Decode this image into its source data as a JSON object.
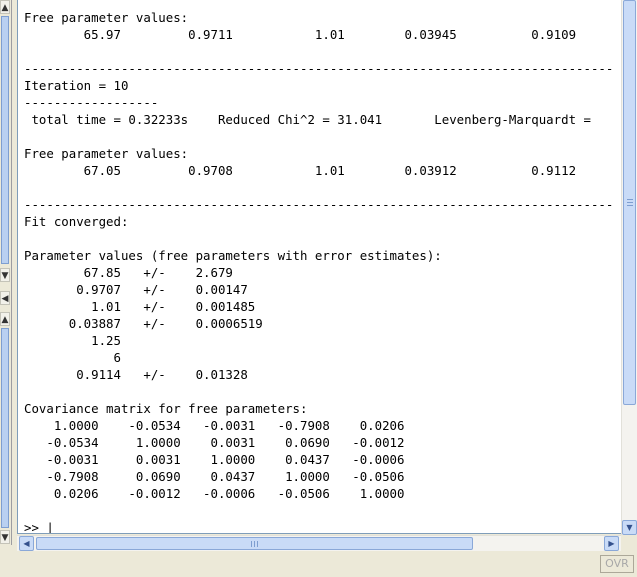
{
  "console": {
    "lines": [
      "Free parameter values:",
      "        65.97         0.9711           1.01        0.03945          0.9109",
      "",
      "-------------------------------------------------------------------------------",
      "Iteration = 10",
      "------------------",
      " total time = 0.32233s    Reduced Chi^2 = 31.041       Levenberg-Marquardt =",
      "",
      "Free parameter values:",
      "        67.05         0.9708           1.01        0.03912          0.9112",
      "",
      "-------------------------------------------------------------------------------",
      "Fit converged:",
      "",
      "Parameter values (free parameters with error estimates):",
      "        67.85   +/-    2.679",
      "       0.9707   +/-    0.00147",
      "         1.01   +/-    0.001485",
      "      0.03887   +/-    0.0006519",
      "         1.25",
      "            6",
      "       0.9114   +/-    0.01328",
      "",
      "Covariance matrix for free parameters:",
      "    1.0000    -0.0534   -0.0031   -0.7908    0.0206",
      "   -0.0534     1.0000    0.0031    0.0690   -0.0012",
      "   -0.0031     0.0031    1.0000    0.0437   -0.0006",
      "   -0.7908     0.0690    0.0437    1.0000   -0.0506",
      "    0.0206    -0.0012   -0.0006   -0.0506    1.0000",
      "",
      ">> |"
    ]
  },
  "statusbar": {
    "mode": "OVR"
  },
  "icons": {
    "left_scroll_up": "▲",
    "left_scroll_down": "▼",
    "left_collapse": "◀",
    "scroll_down": "▼",
    "scroll_left": "◀",
    "scroll_right": "▶"
  }
}
